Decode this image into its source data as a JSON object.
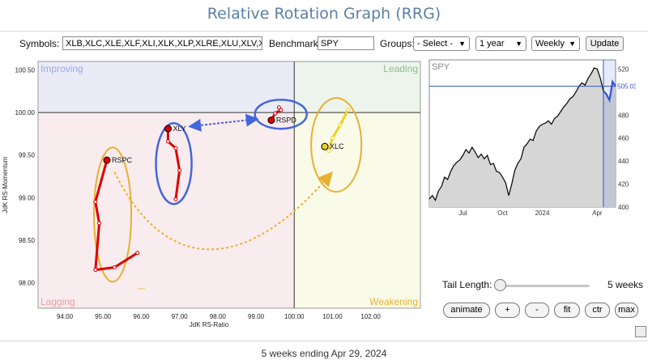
{
  "app": {
    "title": "Relative Rotation Graph (RRG)"
  },
  "controls": {
    "symbols_label": "Symbols:",
    "symbols_value": "XLB,XLC,XLE,XLF,XLI,XLK,XLP,XLRE,XLU,XLV,XL",
    "benchmark_label": "Benchmark:",
    "benchmark_value": "SPY",
    "groups_label": "Groups:",
    "groups_value": "- Select -",
    "period_value": "1 year",
    "frequency_value": "Weekly",
    "update_label": "Update"
  },
  "chart_data": [
    {
      "type": "scatter",
      "title": "",
      "xlabel": "JdK RS-Ratio",
      "ylabel": "JdK RS-Momentum",
      "xlim": [
        93.3,
        103.3
      ],
      "ylim": [
        97.7,
        100.6
      ],
      "x_ticks": [
        "94.00",
        "95.00",
        "96.00",
        "97.00",
        "98.00",
        "99.00",
        "100.00",
        "101.00",
        "102.00"
      ],
      "y_ticks": [
        "98.00",
        "98.50",
        "99.00",
        "99.50",
        "100.00",
        "100.50"
      ],
      "quadrants": {
        "top_left": "Improving",
        "top_right": "Leading",
        "bottom_left": "Lagging",
        "bottom_right": "Weakening"
      },
      "quadrant_colors": {
        "improving": "#ebebf8",
        "leading": "#ecf4ec",
        "lagging": "#f9ecee",
        "weakening": "#fafae8"
      },
      "grid": false,
      "series": [
        {
          "name": "RSPC",
          "color": "#dd0000",
          "points": [
            [
              95.9,
              98.35
            ],
            [
              95.3,
              98.18
            ],
            [
              94.8,
              98.15
            ],
            [
              94.9,
              98.7
            ],
            [
              94.8,
              98.95
            ],
            [
              95.1,
              99.44
            ]
          ]
        },
        {
          "name": "XLY",
          "color": "#dd0000",
          "points": [
            [
              96.9,
              98.98
            ],
            [
              97.0,
              99.32
            ],
            [
              96.9,
              99.58
            ],
            [
              96.7,
              99.66
            ],
            [
              96.7,
              99.81
            ]
          ]
        },
        {
          "name": "RSPD",
          "color": "#dd0000",
          "points": [
            [
              99.6,
              100.06
            ],
            [
              99.65,
              100.03
            ],
            [
              99.5,
              99.99
            ],
            [
              99.4,
              99.91
            ]
          ]
        },
        {
          "name": "XLC",
          "color": "#f0d020",
          "points": [
            [
              101.4,
              100.03
            ],
            [
              101.2,
              99.85
            ],
            [
              101.0,
              99.7
            ],
            [
              100.9,
              99.55
            ],
            [
              100.8,
              99.6
            ]
          ]
        }
      ],
      "annotations": {
        "ellipse_color_blue": "#4466dd",
        "ellipse_color_orange": "#e8b030",
        "arrow_blue_color": "#4466dd",
        "arrow_orange_color": "#e8b030"
      }
    },
    {
      "type": "area",
      "title": "SPY",
      "xlabel": "",
      "ylabel": "",
      "x_ticks": [
        "Jul",
        "Oct",
        "2024",
        "Apr"
      ],
      "y_ticks": [
        "400",
        "420",
        "440",
        "460",
        "480",
        "500",
        "520"
      ],
      "ylim": [
        400,
        528
      ],
      "last_value_label": "505.03",
      "line_color": "#000000",
      "highlight_color": "#3355cc",
      "values": [
        407,
        410,
        406,
        414,
        418,
        426,
        424,
        431,
        436,
        439,
        441,
        445,
        450,
        447,
        452,
        448,
        443,
        446,
        442,
        445,
        437,
        438,
        431,
        430,
        426,
        421,
        410,
        420,
        432,
        438,
        442,
        452,
        455,
        459,
        458,
        466,
        470,
        472,
        473,
        475,
        472,
        477,
        479,
        483,
        487,
        490,
        494,
        496,
        500,
        505,
        508,
        506,
        512,
        516,
        521,
        520,
        512,
        501,
        498,
        493,
        509,
        505
      ],
      "highlight_start_index": 57
    }
  ],
  "tail": {
    "label": "Tail Length:",
    "value_label": "5 weeks",
    "slider_fraction": 0.04
  },
  "buttons": {
    "animate": "animate",
    "plus": "+",
    "minus": "-",
    "fit": "fit",
    "ctr": "ctr",
    "max": "max"
  },
  "caption": "5 weeks ending Apr 29, 2024"
}
